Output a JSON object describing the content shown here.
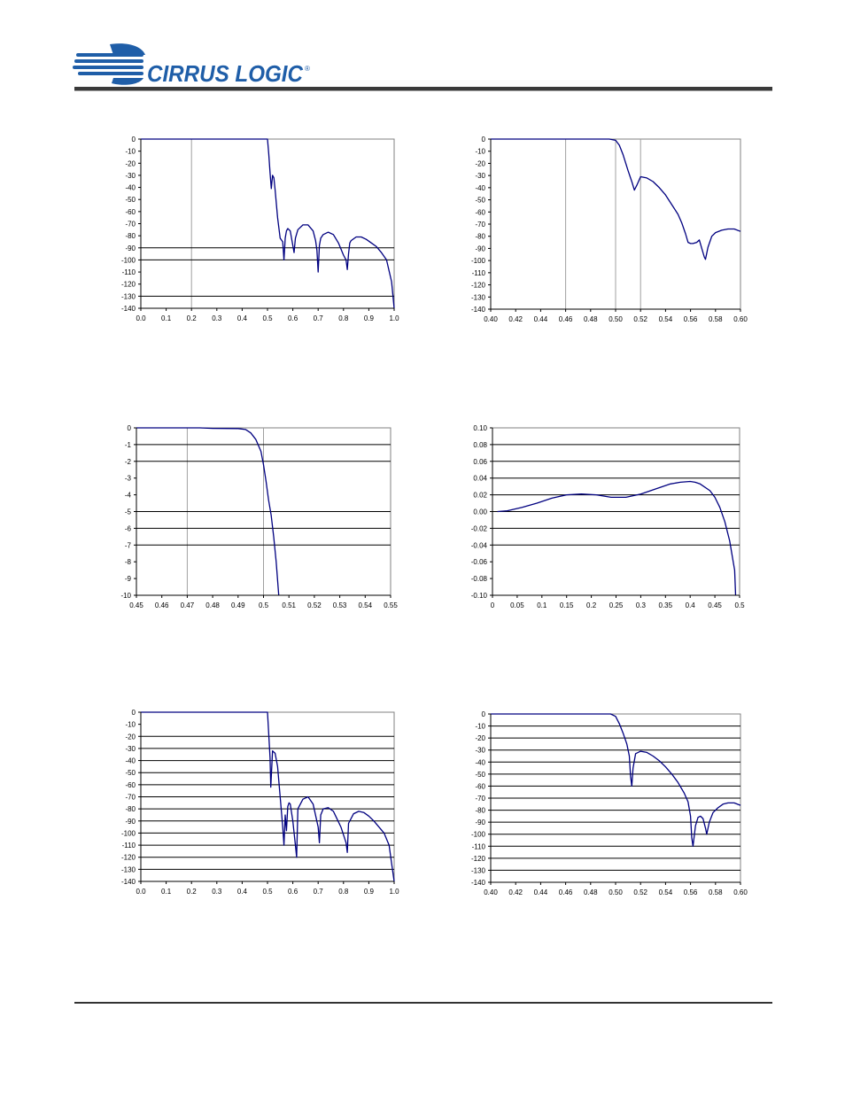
{
  "header": {
    "brand_name": "CIRRUS LOGIC",
    "brand_mark": "®"
  },
  "colors": {
    "series": "#000080",
    "grid": "#000000",
    "vgrid": "#a0a0a0",
    "logo": "#1f5ea8"
  },
  "chart_data": [
    {
      "type": "line",
      "xticks": [
        "0.0",
        "0.1",
        "0.2",
        "0.3",
        "0.4",
        "0.5",
        "0.6",
        "0.7",
        "0.8",
        "0.9",
        "1.0"
      ],
      "yticks": [
        "0",
        "-10",
        "-20",
        "-30",
        "-40",
        "-50",
        "-60",
        "-70",
        "-80",
        "-90",
        "-100",
        "-110",
        "-120",
        "-130",
        "-140"
      ],
      "xlim": [
        0,
        1
      ],
      "ylim": [
        -140,
        0
      ],
      "hgrid": [
        -90,
        -100,
        -130
      ],
      "vgrid": [
        0.2
      ],
      "series": [
        {
          "x": [
            0,
            0.49,
            0.5,
            0.505,
            0.51,
            0.515,
            0.52,
            0.525,
            0.53,
            0.54,
            0.55,
            0.56,
            0.565,
            0.57,
            0.575,
            0.58,
            0.59,
            0.6,
            0.605,
            0.61,
            0.62,
            0.64,
            0.66,
            0.68,
            0.69,
            0.695,
            0.7,
            0.705,
            0.71,
            0.72,
            0.74,
            0.76,
            0.78,
            0.8,
            0.81,
            0.815,
            0.82,
            0.825,
            0.83,
            0.85,
            0.87,
            0.89,
            0.91,
            0.93,
            0.95,
            0.97,
            0.99,
            1.0
          ],
          "y": [
            0,
            0,
            0,
            -12,
            -28,
            -41,
            -30,
            -32,
            -42,
            -65,
            -82,
            -85,
            -100,
            -82,
            -76,
            -74,
            -76,
            -88,
            -94,
            -82,
            -75,
            -71,
            -71,
            -76,
            -84,
            -92,
            -110,
            -88,
            -82,
            -79,
            -77,
            -79,
            -86,
            -96,
            -100,
            -108,
            -95,
            -86,
            -84,
            -81,
            -81,
            -83,
            -86,
            -89,
            -94,
            -100,
            -118,
            -140
          ]
        }
      ]
    },
    {
      "type": "line",
      "xticks": [
        "0.40",
        "0.42",
        "0.44",
        "0.46",
        "0.48",
        "0.50",
        "0.52",
        "0.54",
        "0.56",
        "0.58",
        "0.60"
      ],
      "yticks": [
        "0",
        "-10",
        "-20",
        "-30",
        "-40",
        "-50",
        "-60",
        "-70",
        "-80",
        "-90",
        "-100",
        "-110",
        "-120",
        "-130",
        "-140"
      ],
      "xlim": [
        0.4,
        0.6
      ],
      "ylim": [
        -140,
        0
      ],
      "hgrid": [
        -140
      ],
      "vgrid": [
        0.46,
        0.5,
        0.52
      ],
      "series": [
        {
          "x": [
            0.4,
            0.495,
            0.5,
            0.503,
            0.506,
            0.51,
            0.513,
            0.515,
            0.517,
            0.52,
            0.525,
            0.53,
            0.535,
            0.54,
            0.545,
            0.55,
            0.553,
            0.556,
            0.558,
            0.56,
            0.562,
            0.565,
            0.567,
            0.569,
            0.571,
            0.572,
            0.574,
            0.577,
            0.58,
            0.585,
            0.59,
            0.595,
            0.6
          ],
          "y": [
            0,
            0,
            -1,
            -5,
            -13,
            -26,
            -35,
            -42,
            -38,
            -31,
            -32,
            -35,
            -40,
            -46,
            -54,
            -62,
            -69,
            -78,
            -85,
            -86,
            -86,
            -85,
            -83,
            -90,
            -97,
            -99,
            -89,
            -80,
            -77,
            -75,
            -74,
            -74,
            -76
          ]
        }
      ]
    },
    {
      "type": "line",
      "xticks": [
        "0.45",
        "0.46",
        "0.47",
        "0.48",
        "0.49",
        "0.5",
        "0.51",
        "0.52",
        "0.53",
        "0.54",
        "0.55"
      ],
      "yticks": [
        "0",
        "-1",
        "-2",
        "-3",
        "-4",
        "-5",
        "-6",
        "-7",
        "-8",
        "-9",
        "-10"
      ],
      "xlim": [
        0.45,
        0.55
      ],
      "ylim": [
        -10,
        0
      ],
      "hgrid": [
        -1,
        -2,
        -5,
        -6,
        -7
      ],
      "vgrid": [
        0.47,
        0.5
      ],
      "series": [
        {
          "x": [
            0.45,
            0.475,
            0.48,
            0.49,
            0.493,
            0.495,
            0.497,
            0.499,
            0.5,
            0.501,
            0.502,
            0.503,
            0.504,
            0.505,
            0.506
          ],
          "y": [
            0,
            0,
            -0.03,
            -0.04,
            -0.1,
            -0.3,
            -0.7,
            -1.4,
            -2.2,
            -3.2,
            -4.3,
            -5.2,
            -6.5,
            -8.0,
            -10
          ]
        }
      ]
    },
    {
      "type": "line",
      "xticks": [
        "0",
        "0.05",
        "0.1",
        "0.15",
        "0.2",
        "0.25",
        "0.3",
        "0.35",
        "0.4",
        "0.45",
        "0.5"
      ],
      "yticks": [
        "0.10",
        "0.08",
        "0.06",
        "0.04",
        "0.02",
        "0.00",
        "-0.02",
        "-0.04",
        "-0.06",
        "-0.08",
        "-0.10"
      ],
      "xlim": [
        0,
        0.5
      ],
      "ylim": [
        -0.1,
        0.1
      ],
      "hgrid": [
        0.08,
        0.06,
        0.04,
        0.02,
        0,
        -0.02,
        -0.04
      ],
      "vgrid": [],
      "series": [
        {
          "x": [
            0.01,
            0.03,
            0.06,
            0.09,
            0.12,
            0.15,
            0.18,
            0.21,
            0.24,
            0.27,
            0.3,
            0.33,
            0.36,
            0.38,
            0.4,
            0.41,
            0.42,
            0.44,
            0.45,
            0.46,
            0.47,
            0.48,
            0.49,
            0.492
          ],
          "y": [
            0,
            0.001,
            0.005,
            0.01,
            0.016,
            0.02,
            0.021,
            0.02,
            0.017,
            0.017,
            0.021,
            0.027,
            0.033,
            0.035,
            0.036,
            0.035,
            0.033,
            0.025,
            0.017,
            0.005,
            -0.012,
            -0.035,
            -0.07,
            -0.1
          ]
        }
      ]
    },
    {
      "type": "line",
      "xticks": [
        "0.0",
        "0.1",
        "0.2",
        "0.3",
        "0.4",
        "0.5",
        "0.6",
        "0.7",
        "0.8",
        "0.9",
        "1.0"
      ],
      "yticks": [
        "0",
        "-10",
        "-20",
        "-30",
        "-40",
        "-50",
        "-60",
        "-70",
        "-80",
        "-90",
        "-100",
        "-110",
        "-120",
        "-130",
        "-140"
      ],
      "xlim": [
        0,
        1
      ],
      "ylim": [
        -140,
        0
      ],
      "hgrid": [
        -20,
        -30,
        -40,
        -50,
        -60,
        -70,
        -80,
        -90,
        -100,
        -110,
        -120,
        -130
      ],
      "vgrid": [],
      "series": [
        {
          "x": [
            0,
            0.49,
            0.5,
            0.505,
            0.51,
            0.513,
            0.52,
            0.53,
            0.54,
            0.55,
            0.56,
            0.565,
            0.57,
            0.575,
            0.58,
            0.585,
            0.59,
            0.6,
            0.61,
            0.615,
            0.62,
            0.64,
            0.66,
            0.68,
            0.7,
            0.705,
            0.71,
            0.72,
            0.74,
            0.76,
            0.79,
            0.81,
            0.815,
            0.82,
            0.84,
            0.86,
            0.88,
            0.9,
            0.92,
            0.94,
            0.96,
            0.98,
            0.99,
            1.0
          ],
          "y": [
            0,
            0,
            0,
            -18,
            -38,
            -62,
            -32,
            -34,
            -45,
            -70,
            -95,
            -110,
            -85,
            -98,
            -78,
            -75,
            -76,
            -90,
            -110,
            -120,
            -80,
            -72,
            -70,
            -76,
            -95,
            -108,
            -85,
            -80,
            -79,
            -82,
            -95,
            -108,
            -116,
            -92,
            -84,
            -82,
            -83,
            -86,
            -90,
            -95,
            -100,
            -110,
            -125,
            -140
          ]
        }
      ]
    },
    {
      "type": "line",
      "xticks": [
        "0.40",
        "0.42",
        "0.44",
        "0.46",
        "0.48",
        "0.50",
        "0.52",
        "0.54",
        "0.56",
        "0.58",
        "0.60"
      ],
      "yticks": [
        "0",
        "-10",
        "-20",
        "-30",
        "-40",
        "-50",
        "-60",
        "-70",
        "-80",
        "-90",
        "-100",
        "-110",
        "-120",
        "-130",
        "-140"
      ],
      "xlim": [
        0.4,
        0.6
      ],
      "ylim": [
        -140,
        0
      ],
      "hgrid": [
        -10,
        -20,
        -30,
        -40,
        -50,
        -60,
        -70,
        -80,
        -90,
        -100,
        -110,
        -120,
        -130,
        -140
      ],
      "vgrid": [],
      "series": [
        {
          "x": [
            0.4,
            0.496,
            0.5,
            0.503,
            0.506,
            0.509,
            0.511,
            0.512,
            0.513,
            0.514,
            0.516,
            0.52,
            0.525,
            0.53,
            0.535,
            0.54,
            0.545,
            0.55,
            0.555,
            0.558,
            0.56,
            0.561,
            0.562,
            0.564,
            0.566,
            0.568,
            0.57,
            0.572,
            0.573,
            0.575,
            0.578,
            0.582,
            0.586,
            0.59,
            0.595,
            0.6
          ],
          "y": [
            0,
            0,
            -2,
            -8,
            -16,
            -25,
            -35,
            -52,
            -60,
            -45,
            -33,
            -31,
            -32,
            -35,
            -39,
            -44,
            -50,
            -57,
            -66,
            -73,
            -85,
            -103,
            -110,
            -93,
            -86,
            -85,
            -87,
            -95,
            -100,
            -90,
            -82,
            -78,
            -75,
            -74,
            -74,
            -76
          ]
        }
      ]
    }
  ]
}
